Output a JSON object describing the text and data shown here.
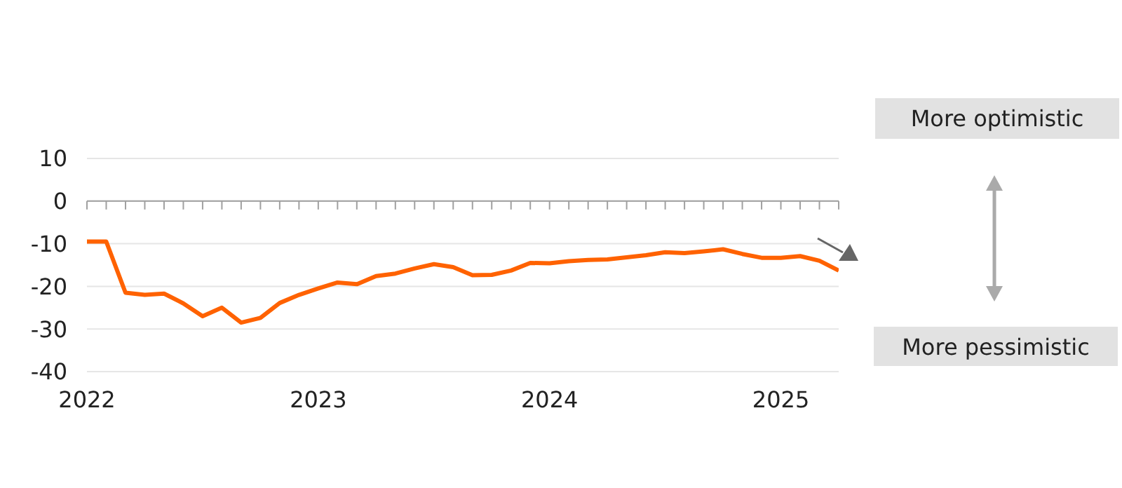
{
  "chart_data": {
    "type": "line",
    "x": [
      "2022-01",
      "2022-02",
      "2022-03",
      "2022-04",
      "2022-05",
      "2022-06",
      "2022-07",
      "2022-08",
      "2022-09",
      "2022-10",
      "2022-11",
      "2022-12",
      "2023-01",
      "2023-02",
      "2023-03",
      "2023-04",
      "2023-05",
      "2023-06",
      "2023-07",
      "2023-08",
      "2023-09",
      "2023-10",
      "2023-11",
      "2023-12",
      "2024-01",
      "2024-02",
      "2024-03",
      "2024-04",
      "2024-05",
      "2024-06",
      "2024-07",
      "2024-08",
      "2024-09",
      "2024-10",
      "2024-11",
      "2024-12",
      "2025-01",
      "2025-02",
      "2025-03",
      "2025-04"
    ],
    "series": [
      {
        "color": "#ff6200",
        "values": [
          -9.5,
          -9.5,
          -21.5,
          -22,
          -21.7,
          -24,
          -27,
          -25,
          -28.5,
          -27.4,
          -23.9,
          -22,
          -20.5,
          -19.1,
          -19.5,
          -17.6,
          -17,
          -15.8,
          -14.8,
          -15.5,
          -17.4,
          -17.3,
          -16.3,
          -14.5,
          -14.6,
          -14.1,
          -13.8,
          -13.7,
          -13.2,
          -12.7,
          -12,
          -12.2,
          -11.8,
          -11.3,
          -12.4,
          -13.3,
          -13.3,
          -12.9,
          -14,
          -16.3
        ]
      }
    ],
    "xlim": [
      "2022-01",
      "2025-04"
    ],
    "xticks": [
      {
        "value": "2022-01",
        "label": "2022"
      },
      {
        "value": "2023-01",
        "label": "2023"
      },
      {
        "value": "2024-01",
        "label": "2024"
      },
      {
        "value": "2025-01",
        "label": "2025"
      }
    ],
    "ylim": [
      -40,
      10
    ],
    "yticks": [
      -40,
      -30,
      -20,
      -10,
      0,
      10
    ],
    "grid": "y",
    "line_style": "solid",
    "marker": "none",
    "legend": false,
    "ref_lines": [
      {
        "axis": "y",
        "value": 0,
        "color": "#a0a0a0"
      }
    ],
    "annotations": [
      "More optimistic",
      "More pessimistic"
    ]
  }
}
